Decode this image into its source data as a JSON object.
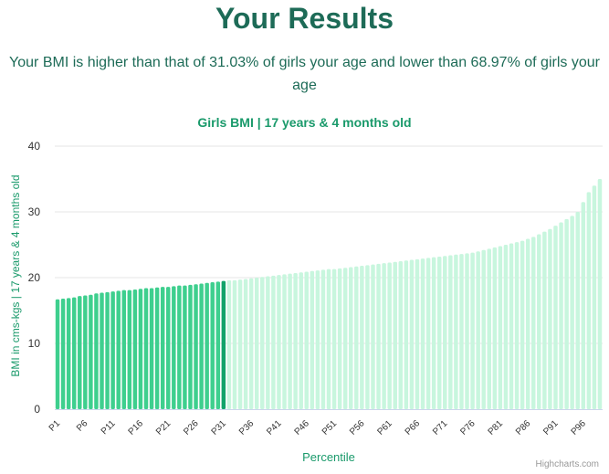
{
  "header": {
    "title": "Your Results",
    "summary_line1": "Your BMI is higher than that of 31.03% of girls your age and lower than 68.97% of girls your",
    "summary_line2": "age"
  },
  "credits": "Highcharts.com",
  "colors": {
    "title": "#1d6b57",
    "accent": "#1a9a6b",
    "below_user": "#3ecf8e",
    "user_bar": "#12a36a",
    "above_user": "#c8f6de"
  },
  "chart_data": {
    "type": "bar",
    "title": "Girls BMI | 17 years & 4 months old",
    "xlabel": "Percentile",
    "ylabel": "BMI in cms-kgs | 17 years & 4 months old",
    "ylim": [
      0,
      40
    ],
    "yticks": [
      0,
      10,
      20,
      30,
      40
    ],
    "grid": true,
    "legend": "none",
    "x_tick_labels": [
      "P1",
      "P6",
      "P11",
      "P16",
      "P21",
      "P26",
      "P31",
      "P36",
      "P41",
      "P46",
      "P51",
      "P56",
      "P61",
      "P66",
      "P71",
      "P76",
      "P81",
      "P86",
      "P91",
      "P96"
    ],
    "highlight_percentile": 31,
    "categories": [
      "P1",
      "P2",
      "P3",
      "P4",
      "P5",
      "P6",
      "P7",
      "P8",
      "P9",
      "P10",
      "P11",
      "P12",
      "P13",
      "P14",
      "P15",
      "P16",
      "P17",
      "P18",
      "P19",
      "P20",
      "P21",
      "P22",
      "P23",
      "P24",
      "P25",
      "P26",
      "P27",
      "P28",
      "P29",
      "P30",
      "P31",
      "P32",
      "P33",
      "P34",
      "P35",
      "P36",
      "P37",
      "P38",
      "P39",
      "P40",
      "P41",
      "P42",
      "P43",
      "P44",
      "P45",
      "P46",
      "P47",
      "P48",
      "P49",
      "P50",
      "P51",
      "P52",
      "P53",
      "P54",
      "P55",
      "P56",
      "P57",
      "P58",
      "P59",
      "P60",
      "P61",
      "P62",
      "P63",
      "P64",
      "P65",
      "P66",
      "P67",
      "P68",
      "P69",
      "P70",
      "P71",
      "P72",
      "P73",
      "P74",
      "P75",
      "P76",
      "P77",
      "P78",
      "P79",
      "P80",
      "P81",
      "P82",
      "P83",
      "P84",
      "P85",
      "P86",
      "P87",
      "P88",
      "P89",
      "P90",
      "P91",
      "P92",
      "P93",
      "P94",
      "P95",
      "P96",
      "P97",
      "P98",
      "P99"
    ],
    "values": [
      16.7,
      16.8,
      16.9,
      17.0,
      17.2,
      17.3,
      17.4,
      17.6,
      17.7,
      17.8,
      17.9,
      18.0,
      18.1,
      18.1,
      18.2,
      18.3,
      18.4,
      18.4,
      18.5,
      18.6,
      18.6,
      18.7,
      18.8,
      18.8,
      18.9,
      19.0,
      19.1,
      19.2,
      19.3,
      19.4,
      19.5,
      19.6,
      19.6,
      19.7,
      19.8,
      19.9,
      20.0,
      20.1,
      20.2,
      20.3,
      20.4,
      20.5,
      20.6,
      20.7,
      20.8,
      20.9,
      21.0,
      21.1,
      21.2,
      21.3,
      21.3,
      21.4,
      21.5,
      21.6,
      21.7,
      21.8,
      21.9,
      22.0,
      22.1,
      22.2,
      22.3,
      22.4,
      22.5,
      22.6,
      22.7,
      22.8,
      22.9,
      23.0,
      23.1,
      23.2,
      23.3,
      23.4,
      23.5,
      23.6,
      23.7,
      23.8,
      24.0,
      24.2,
      24.4,
      24.6,
      24.8,
      25.0,
      25.2,
      25.4,
      25.6,
      25.9,
      26.2,
      26.6,
      27.0,
      27.4,
      27.9,
      28.4,
      28.9,
      29.4,
      30.0,
      31.5,
      33.0,
      34.0,
      35.0
    ]
  }
}
